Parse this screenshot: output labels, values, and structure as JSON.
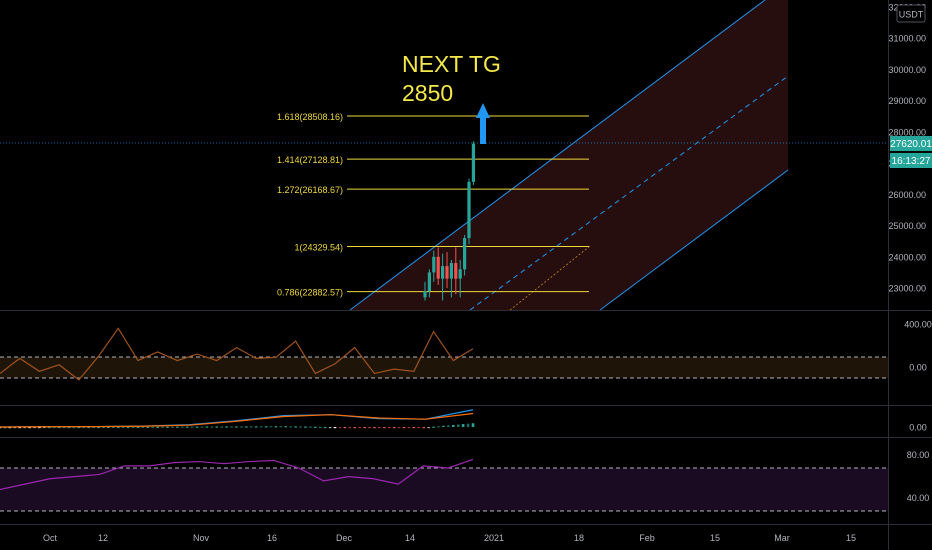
{
  "currency": "USDT",
  "annotation": {
    "line1": "NEXT TG",
    "line2": "2850"
  },
  "badges": {
    "price": "27620.01",
    "countdown": "16:13:27"
  },
  "colors": {
    "background": "#000000",
    "channel_fill": "#2a1010",
    "channel_line": "#2196f3",
    "fib_line": "#f0d83c",
    "fib_text": "#f0d83c",
    "up_candle": "#26a69a",
    "down_candle": "#ef5350",
    "cci_line": "#a0521b",
    "macd_line": "#2196f3",
    "signal_line": "#ff6d00",
    "rsi_line": "#9c27b0",
    "price_badge": "#26a69a",
    "axis_text": "#b2b5be"
  },
  "chart_data": [
    {
      "type": "line",
      "panel": "price",
      "y_axis_ticks": [
        "32000.00",
        "31000.00",
        "30000.00",
        "29000.00",
        "28000.00",
        "27000.00",
        "26000.00",
        "25000.00",
        "24000.00",
        "23000.00"
      ],
      "ylim": [
        22300,
        32200
      ],
      "current_price": 27620.01,
      "fib_levels": [
        {
          "ratio": "1.618",
          "price": 28508.16,
          "label": "1.618(28508.16)"
        },
        {
          "ratio": "1.414",
          "price": 27128.81,
          "label": "1.414(27128.81)"
        },
        {
          "ratio": "1.272",
          "price": 26168.67,
          "label": "1.272(26168.67)"
        },
        {
          "ratio": "1",
          "price": 24329.54,
          "label": "1(24329.54)"
        },
        {
          "ratio": "0.786",
          "price": 22882.57,
          "label": "0.786(22882.57)"
        }
      ],
      "candles": [
        {
          "date": "2020-12-15",
          "open": 22700,
          "high": 23200,
          "low": 22600,
          "close": 22900
        },
        {
          "date": "2020-12-16",
          "open": 22900,
          "high": 23600,
          "low": 22700,
          "close": 23500
        },
        {
          "date": "2020-12-17",
          "open": 23500,
          "high": 24200,
          "low": 23200,
          "close": 24000
        },
        {
          "date": "2020-12-18",
          "open": 24000,
          "high": 24300,
          "low": 23100,
          "close": 23300
        },
        {
          "date": "2020-12-19",
          "open": 23300,
          "high": 24100,
          "low": 22600,
          "close": 23700
        },
        {
          "date": "2020-12-20",
          "open": 23700,
          "high": 24150,
          "low": 23000,
          "close": 23300
        },
        {
          "date": "2020-12-21",
          "open": 23300,
          "high": 23900,
          "low": 22700,
          "close": 23800
        },
        {
          "date": "2020-12-22",
          "open": 23800,
          "high": 24300,
          "low": 22800,
          "close": 23300
        },
        {
          "date": "2020-12-23",
          "open": 23300,
          "high": 23900,
          "low": 22700,
          "close": 23600
        },
        {
          "date": "2020-12-24",
          "open": 23600,
          "high": 24700,
          "low": 23400,
          "close": 24600
        },
        {
          "date": "2020-12-25",
          "open": 24600,
          "high": 26500,
          "low": 24400,
          "close": 26400
        },
        {
          "date": "2020-12-26",
          "open": 26400,
          "high": 27700,
          "low": 26300,
          "close": 27620
        }
      ]
    },
    {
      "type": "line",
      "panel": "oscillator_1",
      "y_axis_ticks": [
        "400.00",
        "0.00"
      ],
      "upper_band": 130,
      "lower_band": -130,
      "x": [
        "Sep 22",
        "Sep 26",
        "Sep 30",
        "Oct 4",
        "Oct 8",
        "Oct 12",
        "Oct 16",
        "Oct 20",
        "Oct 24",
        "Oct 28",
        "Nov 1",
        "Nov 5",
        "Nov 9",
        "Nov 13",
        "Nov 17",
        "Nov 21",
        "Nov 25",
        "Nov 29",
        "Dec 3",
        "Dec 7",
        "Dec 11",
        "Dec 15",
        "Dec 19",
        "Dec 23",
        "Dec 27"
      ],
      "values": [
        -60,
        80,
        -40,
        20,
        -120,
        100,
        360,
        60,
        140,
        60,
        120,
        60,
        180,
        80,
        90,
        240,
        -60,
        30,
        180,
        -60,
        -20,
        -40,
        330,
        60,
        170
      ]
    },
    {
      "type": "line",
      "panel": "macd",
      "y_axis_ticks": [
        "0.00"
      ],
      "x": [
        "Sep 22",
        "Oct 2",
        "Oct 12",
        "Oct 22",
        "Nov 1",
        "Nov 11",
        "Nov 21",
        "Dec 1",
        "Dec 11",
        "Dec 21",
        "Dec 27"
      ],
      "series": [
        {
          "values": [
            0,
            20,
            30,
            60,
            150,
            420,
            760,
            820,
            560,
            520,
            1150
          ]
        },
        {
          "values": [
            0,
            15,
            25,
            50,
            120,
            380,
            700,
            820,
            600,
            520,
            900
          ]
        }
      ],
      "histogram": [
        0,
        5,
        5,
        10,
        30,
        40,
        60,
        0,
        -40,
        -20,
        250
      ]
    },
    {
      "type": "line",
      "panel": "rsi",
      "y_axis_ticks": [
        "80.00",
        "40.00"
      ],
      "upper_band": 70,
      "lower_band": 30,
      "x": [
        "Sep 22",
        "Sep 27",
        "Oct 2",
        "Oct 7",
        "Oct 12",
        "Oct 17",
        "Oct 22",
        "Oct 27",
        "Nov 1",
        "Nov 6",
        "Nov 11",
        "Nov 16",
        "Nov 21",
        "Nov 26",
        "Dec 1",
        "Dec 6",
        "Dec 11",
        "Dec 16",
        "Dec 21",
        "Dec 27"
      ],
      "values": [
        50,
        55,
        60,
        62,
        64,
        72,
        72,
        75,
        76,
        74,
        76,
        77,
        70,
        58,
        62,
        60,
        55,
        72,
        70,
        78
      ]
    }
  ],
  "x_axis": [
    "Oct",
    "12",
    "Nov",
    "16",
    "Dec",
    "14",
    "2021",
    "18",
    "Feb",
    "15",
    "Mar",
    "15"
  ]
}
